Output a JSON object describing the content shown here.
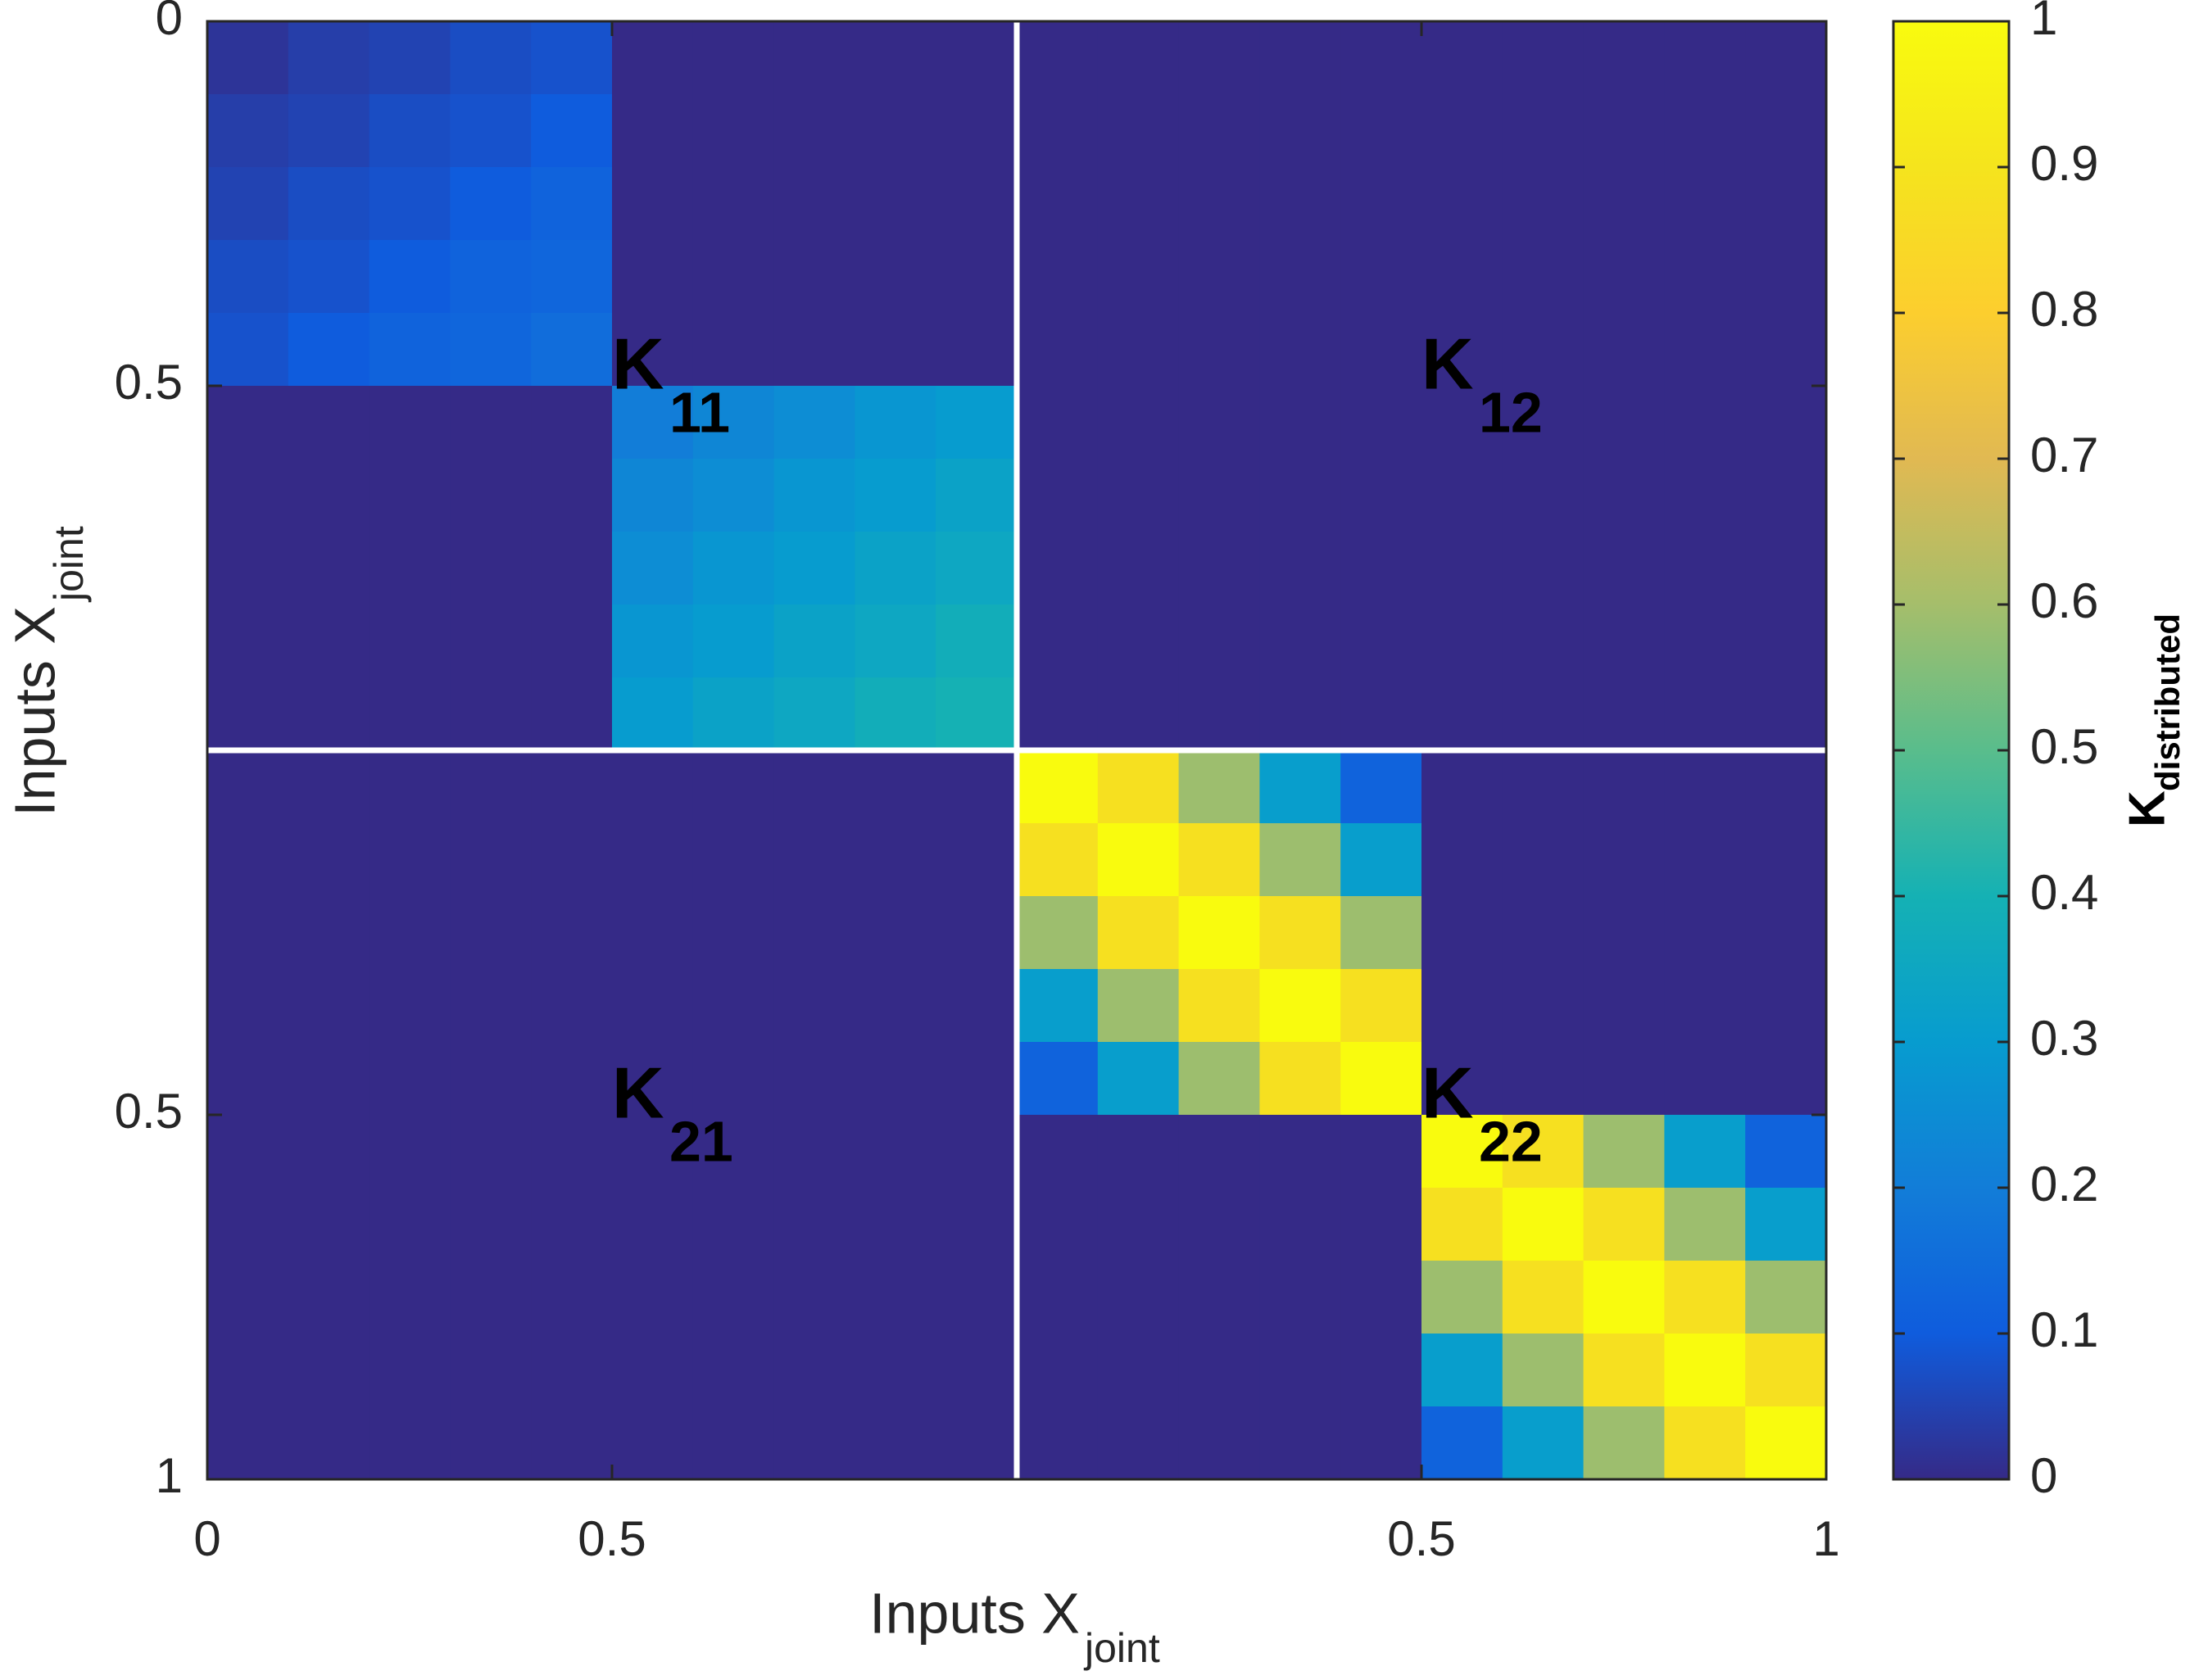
{
  "chart_data": {
    "type": "heatmap",
    "colormap": "parula",
    "x_label": {
      "text": "Inputs X",
      "subscript": "joint"
    },
    "y_label": {
      "text": "Inputs X",
      "subscript": "joint"
    },
    "xlim": [
      0,
      2
    ],
    "ylim": [
      0,
      2
    ],
    "yreverse": true,
    "xticks": [
      0,
      0.5,
      {
        "value": 1.5,
        "label": "0.5"
      },
      {
        "value": 2,
        "label": "1"
      }
    ],
    "yticks": [
      0,
      0.5,
      {
        "value": 1.5,
        "label": "0.5"
      },
      {
        "value": 2,
        "label": "1"
      }
    ],
    "dividers": [
      1
    ],
    "annotations": [
      {
        "text": "K",
        "subscript": "11"
      },
      {
        "text": "K",
        "subscript": "12"
      },
      {
        "text": "K",
        "subscript": "21"
      },
      {
        "text": "K",
        "subscript": "22"
      }
    ],
    "colorbar": {
      "label": {
        "text": "K",
        "subscript": "distributed"
      },
      "lim": [
        0,
        1
      ],
      "ticks": [
        0,
        0.1,
        0.2,
        0.3,
        0.4,
        0.5,
        0.6,
        0.7,
        0.8,
        0.9,
        1
      ]
    },
    "z": [
      [
        0.02,
        0.04,
        0.05,
        0.07,
        0.08,
        0,
        0,
        0,
        0,
        0,
        0,
        0,
        0,
        0,
        0,
        0,
        0,
        0,
        0,
        0
      ],
      [
        0.04,
        0.05,
        0.07,
        0.08,
        0.1,
        0,
        0,
        0,
        0,
        0,
        0,
        0,
        0,
        0,
        0,
        0,
        0,
        0,
        0,
        0
      ],
      [
        0.05,
        0.07,
        0.08,
        0.1,
        0.12,
        0,
        0,
        0,
        0,
        0,
        0,
        0,
        0,
        0,
        0,
        0,
        0,
        0,
        0,
        0
      ],
      [
        0.07,
        0.08,
        0.1,
        0.12,
        0.13,
        0,
        0,
        0,
        0,
        0,
        0,
        0,
        0,
        0,
        0,
        0,
        0,
        0,
        0,
        0
      ],
      [
        0.08,
        0.1,
        0.12,
        0.13,
        0.15,
        0,
        0,
        0,
        0,
        0,
        0,
        0,
        0,
        0,
        0,
        0,
        0,
        0,
        0,
        0
      ],
      [
        0,
        0,
        0,
        0,
        0,
        0.2,
        0.23,
        0.25,
        0.28,
        0.3,
        0,
        0,
        0,
        0,
        0,
        0,
        0,
        0,
        0,
        0
      ],
      [
        0,
        0,
        0,
        0,
        0,
        0.23,
        0.25,
        0.28,
        0.3,
        0.33,
        0,
        0,
        0,
        0,
        0,
        0,
        0,
        0,
        0,
        0
      ],
      [
        0,
        0,
        0,
        0,
        0,
        0.25,
        0.28,
        0.3,
        0.33,
        0.35,
        0,
        0,
        0,
        0,
        0,
        0,
        0,
        0,
        0,
        0
      ],
      [
        0,
        0,
        0,
        0,
        0,
        0.28,
        0.3,
        0.33,
        0.35,
        0.38,
        0,
        0,
        0,
        0,
        0,
        0,
        0,
        0,
        0,
        0
      ],
      [
        0,
        0,
        0,
        0,
        0,
        0.3,
        0.33,
        0.35,
        0.38,
        0.4,
        0,
        0,
        0,
        0,
        0,
        0,
        0,
        0,
        0,
        0
      ],
      [
        0,
        0,
        0,
        0,
        0,
        0,
        0,
        0,
        0,
        0,
        1,
        0.88,
        0.59,
        0.31,
        0.12,
        0,
        0,
        0,
        0,
        0
      ],
      [
        0,
        0,
        0,
        0,
        0,
        0,
        0,
        0,
        0,
        0,
        0.88,
        1,
        0.88,
        0.59,
        0.31,
        0,
        0,
        0,
        0,
        0
      ],
      [
        0,
        0,
        0,
        0,
        0,
        0,
        0,
        0,
        0,
        0,
        0.59,
        0.88,
        1,
        0.88,
        0.59,
        0,
        0,
        0,
        0,
        0
      ],
      [
        0,
        0,
        0,
        0,
        0,
        0,
        0,
        0,
        0,
        0,
        0.31,
        0.59,
        0.88,
        1,
        0.88,
        0,
        0,
        0,
        0,
        0
      ],
      [
        0,
        0,
        0,
        0,
        0,
        0,
        0,
        0,
        0,
        0,
        0.12,
        0.31,
        0.59,
        0.88,
        1,
        0,
        0,
        0,
        0,
        0
      ],
      [
        0,
        0,
        0,
        0,
        0,
        0,
        0,
        0,
        0,
        0,
        0,
        0,
        0,
        0,
        0,
        1,
        0.88,
        0.59,
        0.31,
        0.12
      ],
      [
        0,
        0,
        0,
        0,
        0,
        0,
        0,
        0,
        0,
        0,
        0,
        0,
        0,
        0,
        0,
        0.88,
        1,
        0.88,
        0.59,
        0.31
      ],
      [
        0,
        0,
        0,
        0,
        0,
        0,
        0,
        0,
        0,
        0,
        0,
        0,
        0,
        0,
        0,
        0.59,
        0.88,
        1,
        0.88,
        0.59
      ],
      [
        0,
        0,
        0,
        0,
        0,
        0,
        0,
        0,
        0,
        0,
        0,
        0,
        0,
        0,
        0,
        0.31,
        0.59,
        0.88,
        1,
        0.88
      ],
      [
        0,
        0,
        0,
        0,
        0,
        0,
        0,
        0,
        0,
        0,
        0,
        0,
        0,
        0,
        0,
        0.12,
        0.31,
        0.59,
        0.88,
        1
      ]
    ]
  }
}
